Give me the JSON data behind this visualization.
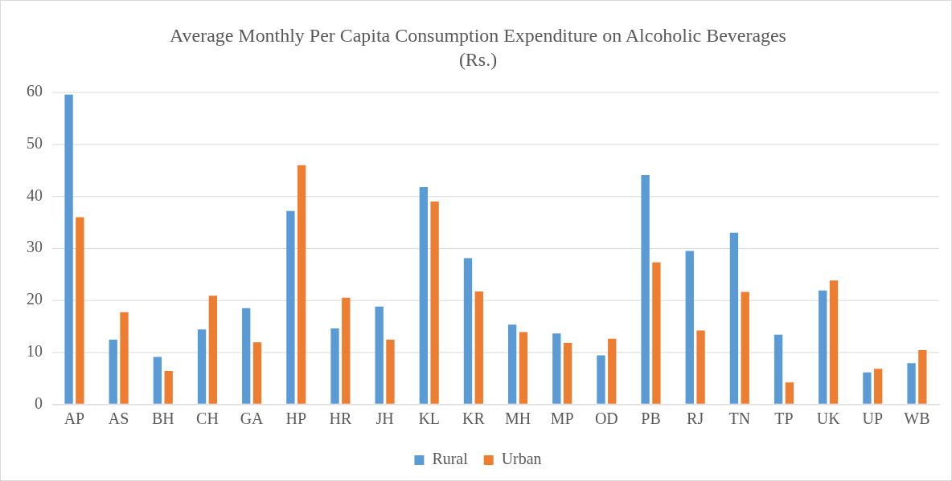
{
  "chart_data": {
    "type": "bar",
    "title": "Average Monthly Per Capita Consumption Expenditure on Alcoholic Beverages",
    "subtitle": "(Rs.)",
    "categories": [
      "AP",
      "AS",
      "BH",
      "CH",
      "GA",
      "HP",
      "HR",
      "JH",
      "KL",
      "KR",
      "MH",
      "MP",
      "OD",
      "PB",
      "RJ",
      "TN",
      "TP",
      "UK",
      "UP",
      "WB"
    ],
    "series": [
      {
        "name": "Rural",
        "color": "#5b9bd5",
        "values": [
          59.6,
          12.4,
          9.1,
          14.4,
          18.5,
          37.2,
          14.6,
          18.8,
          41.8,
          28.1,
          15.3,
          13.6,
          9.4,
          44.1,
          29.5,
          33,
          13.4,
          21.9,
          6.1,
          7.9
        ]
      },
      {
        "name": "Urban",
        "color": "#ed7d31",
        "values": [
          36,
          17.7,
          6.4,
          20.9,
          11.9,
          46,
          20.5,
          12.4,
          39,
          21.7,
          13.9,
          11.8,
          12.6,
          27.3,
          14.2,
          21.6,
          4.2,
          23.8,
          6.8,
          10.4
        ]
      }
    ],
    "ylim": [
      0,
      60
    ],
    "yticks": [
      0,
      10,
      20,
      30,
      40,
      50,
      60
    ],
    "grid": "y",
    "legend": "bottom"
  }
}
